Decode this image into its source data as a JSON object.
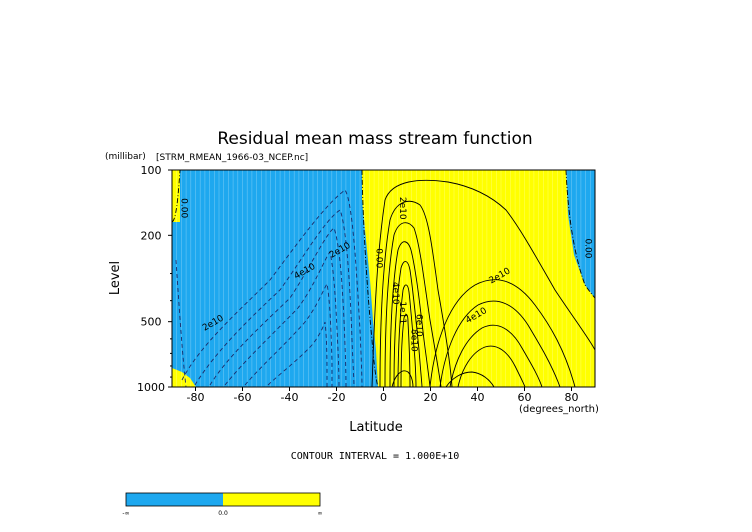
{
  "chart_data": {
    "type": "contour",
    "title": "Residual mean mass stream function",
    "subtitle": "[STRM_RMEAN_1966-03_NCEP.nc]",
    "xlabel": "Latitude",
    "xunits": "(degrees_north)",
    "ylabel": "Level",
    "yunits": "(millibar)",
    "xlim": [
      -90,
      90
    ],
    "ylim": [
      1000,
      100
    ],
    "y_scale": "log",
    "x_ticks": [
      -80,
      -60,
      -40,
      -20,
      0,
      20,
      40,
      60,
      80
    ],
    "y_ticks": [
      100,
      200,
      500,
      1000
    ],
    "contour_interval_text": "CONTOUR INTERVAL = 1.000E+10",
    "fill_colors": {
      "negative": "#1ea8ef",
      "positive": "#ffff00"
    },
    "colorbar": {
      "labels": [
        "-∞",
        "0.0",
        "∞"
      ],
      "colors": [
        "#1ea8ef",
        "#ffff00"
      ]
    },
    "contour_labels": [
      {
        "text": "0.00",
        "lat": -86,
        "p": 150
      },
      {
        "text": "2e10",
        "lat": -72,
        "p": 520
      },
      {
        "text": "4e10",
        "lat": -33,
        "p": 300
      },
      {
        "text": "2e10",
        "lat": -18,
        "p": 240
      },
      {
        "text": "0.00",
        "lat": -3,
        "p": 255
      },
      {
        "text": "2e10",
        "lat": 7,
        "p": 150
      },
      {
        "text": "4e10",
        "lat": 4,
        "p": 370
      },
      {
        "text": "1e11",
        "lat": 7,
        "p": 455
      },
      {
        "text": "6e10",
        "lat": 14,
        "p": 520
      },
      {
        "text": "8e10",
        "lat": 12,
        "p": 610
      },
      {
        "text": "2e10",
        "lat": 50,
        "p": 315
      },
      {
        "text": "4e10",
        "lat": 40,
        "p": 480
      },
      {
        "text": "0.00",
        "lat": 86,
        "p": 230
      }
    ]
  }
}
